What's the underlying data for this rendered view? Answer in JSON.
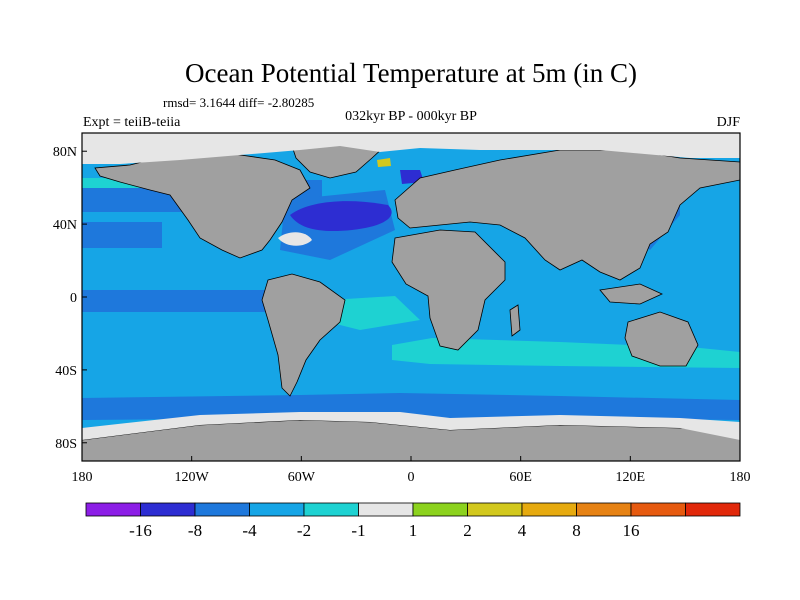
{
  "title": "Ocean Potential Temperature at 5m (in C)",
  "stats": "rmsd= 3.1644 diff= -2.80285",
  "experiment": "Expt = teiiB-teiia",
  "period": "032kyr BP - 000kyr BP",
  "season": "DJF",
  "lat_ticks": [
    {
      "value": 80,
      "label": "80N"
    },
    {
      "value": 40,
      "label": "40N"
    },
    {
      "value": 0,
      "label": "0"
    },
    {
      "value": -40,
      "label": "40S"
    },
    {
      "value": -80,
      "label": "80S"
    }
  ],
  "lon_ticks": [
    {
      "value": -180,
      "label": "180"
    },
    {
      "value": -120,
      "label": "120W"
    },
    {
      "value": -60,
      "label": "60W"
    },
    {
      "value": 0,
      "label": "0"
    },
    {
      "value": 60,
      "label": "60E"
    },
    {
      "value": 120,
      "label": "120E"
    },
    {
      "value": 180,
      "label": "180"
    }
  ],
  "colorbar": {
    "colors": [
      "#8c1ee6",
      "#2d2dd2",
      "#1e78dc",
      "#16a5e6",
      "#1ed2d2",
      "#e6e6e6",
      "#8cd21e",
      "#d2c81e",
      "#e6aa0f",
      "#e68214",
      "#e65a0f",
      "#e1280a"
    ],
    "labels": [
      "-16",
      "-8",
      "-4",
      "-2",
      "-1",
      "1",
      "2",
      "4",
      "8",
      "16"
    ]
  },
  "colors": {
    "land": "#a0a0a0",
    "ice": "#e6e6e6",
    "ocean_base": "#16a5e6",
    "ocean_light": "#1ed2d2",
    "ocean_mid": "#1e78dc",
    "ocean_dark": "#2d2dd2"
  }
}
